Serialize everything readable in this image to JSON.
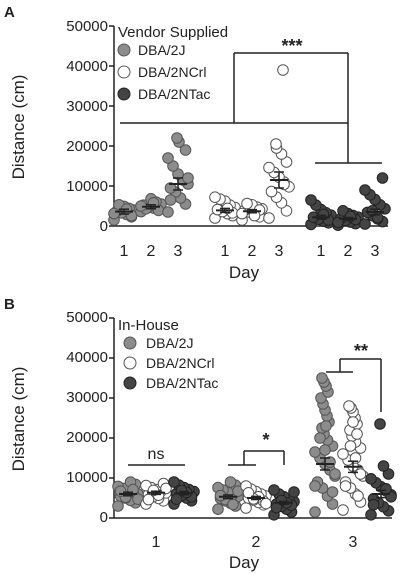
{
  "chart_data": [
    {
      "type": "scatter",
      "panel_label": "A",
      "legend_title": "Vendor Supplied",
      "ylabel": "Distance (cm)",
      "xlabel": "Day",
      "ylim": [
        0,
        50000
      ],
      "yticks": [
        "0",
        "10000",
        "20000",
        "30000",
        "40000",
        "50000"
      ],
      "legend_position": "top-left",
      "series": [
        {
          "name": "DBA/2J",
          "color": "#8c8c8c",
          "stroke": "#555555",
          "days": [
            {
              "day": "1",
              "mean": 3600,
              "sem": 600,
              "values": [
                1500,
                2300,
                2900,
                3300,
                3600,
                4000,
                4400,
                4900,
                5300,
                3100,
                2600,
                4200
              ]
            },
            {
              "day": "2",
              "mean": 4800,
              "sem": 500,
              "values": [
                3600,
                4100,
                4500,
                4800,
                5200,
                5500,
                6000,
                6800,
                4300,
                5000,
                3900,
                5800
              ]
            },
            {
              "day": "3",
              "mean": 10500,
              "sem": 1500,
              "values": [
                3500,
                5500,
                7000,
                8500,
                9500,
                10500,
                11500,
                13000,
                15000,
                17000,
                19000,
                21000,
                22000,
                6500,
                12000
              ]
            }
          ]
        },
        {
          "name": "DBA/2NCrl",
          "color": "#ffffff",
          "stroke": "#555555",
          "days": [
            {
              "day": "1",
              "mean": 3900,
              "sem": 500,
              "values": [
                2000,
                2600,
                3100,
                3600,
                4100,
                4600,
                5200,
                6200,
                6700,
                7200,
                3300,
                4400
              ]
            },
            {
              "day": "2",
              "mean": 3700,
              "sem": 400,
              "values": [
                1500,
                2300,
                2900,
                3500,
                3900,
                4300,
                4700,
                5300,
                5600,
                3100,
                4000,
                2600
              ]
            },
            {
              "day": "3",
              "mean": 11500,
              "sem": 2000,
              "values": [
                2000,
                3800,
                5800,
                7200,
                8600,
                9800,
                11000,
                12200,
                13400,
                14600,
                16000,
                18000,
                19500,
                20500,
                39000,
                10400
              ]
            }
          ]
        },
        {
          "name": "DBA/2NTac",
          "color": "#444444",
          "stroke": "#222222",
          "days": [
            {
              "day": "1",
              "mean": 2200,
              "sem": 450,
              "values": [
                400,
                800,
                1200,
                1700,
                2200,
                2700,
                3300,
                4100,
                5200,
                6500,
                1500,
                2900
              ]
            },
            {
              "day": "2",
              "mean": 1800,
              "sem": 300,
              "values": [
                200,
                600,
                1000,
                1400,
                1800,
                2200,
                2600,
                3100,
                3800,
                900,
                1600,
                2400
              ]
            },
            {
              "day": "3",
              "mean": 3500,
              "sem": 700,
              "values": [
                500,
                1100,
                1800,
                2600,
                3400,
                4300,
                5300,
                6600,
                7800,
                9000,
                12000,
                2100,
                3800
              ]
            }
          ]
        }
      ],
      "significance": [
        {
          "label": "***"
        }
      ]
    },
    {
      "type": "scatter",
      "panel_label": "B",
      "legend_title": "In-House",
      "ylabel": "Distance (cm)",
      "xlabel": "Day",
      "ylim": [
        0,
        50000
      ],
      "yticks": [
        "0",
        "10000",
        "20000",
        "30000",
        "40000",
        "50000"
      ],
      "categories": [
        "1",
        "2",
        "3"
      ],
      "legend_position": "top-left",
      "series": [
        {
          "name": "DBA/2J",
          "color": "#8c8c8c",
          "stroke": "#555555",
          "values": [
            {
              "mean": 6000,
              "sem": 450,
              "values": [
                3000,
                3800,
                4400,
                5000,
                5500,
                6000,
                6400,
                6900,
                7400,
                7900,
                8400,
                9000,
                5200,
                6700,
                4700,
                7100
              ]
            },
            {
              "mean": 5300,
              "sem": 450,
              "values": [
                2200,
                3000,
                3700,
                4300,
                4900,
                5400,
                5900,
                6400,
                7000,
                7600,
                8200,
                9000,
                4600,
                5600,
                6700,
                3400
              ]
            },
            {
              "mean": 13500,
              "sem": 1500,
              "values": [
                1500,
                3500,
                5500,
                7500,
                9000,
                10500,
                12000,
                13500,
                15000,
                16500,
                18000,
                19500,
                21000,
                22500,
                24000,
                25500,
                27000,
                28500,
                30000,
                31500,
                33000,
                34000,
                35000,
                11000,
                14000,
                17000,
                20000,
                8000,
                6500,
                23000
              ]
            }
          ]
        },
        {
          "name": "DBA/2NCrl",
          "color": "#ffffff",
          "stroke": "#555555",
          "values": [
            {
              "mean": 6300,
              "sem": 400,
              "values": [
                3500,
                4300,
                4900,
                5400,
                5900,
                6300,
                6700,
                7100,
                7600,
                8100,
                8600,
                5700,
                6900,
                4600,
                7400
              ]
            },
            {
              "mean": 5000,
              "sem": 400,
              "values": [
                2500,
                3300,
                3900,
                4500,
                5000,
                5500,
                6000,
                6600,
                7200,
                8000,
                4200,
                5300,
                4800,
                6300,
                3600
              ]
            },
            {
              "mean": 12800,
              "sem": 1400,
              "values": [
                2000,
                4000,
                6000,
                7500,
                9000,
                10500,
                12000,
                13000,
                14500,
                16000,
                17500,
                19000,
                20500,
                22000,
                23500,
                25000,
                26500,
                27500,
                28000,
                11000,
                15000,
                18000,
                8000,
                21000,
                5500,
                24000
              ]
            }
          ]
        },
        {
          "name": "DBA/2NTac",
          "color": "#444444",
          "stroke": "#222222",
          "values": [
            {
              "mean": 6200,
              "sem": 400,
              "values": [
                3500,
                4300,
                5000,
                5600,
                6100,
                6600,
                7100,
                7600,
                8200,
                9000,
                5300,
                6400,
                6900,
                4700
              ]
            },
            {
              "mean": 3800,
              "sem": 350,
              "values": [
                800,
                1500,
                2200,
                2900,
                3500,
                4100,
                4700,
                5300,
                6000,
                7000,
                3200,
                3800,
                4400,
                2600,
                6500
              ]
            },
            {
              "mean": 6000,
              "sem": 900,
              "values": [
                800,
                1800,
                2800,
                3800,
                4800,
                5800,
                6800,
                7800,
                8800,
                9800,
                11000,
                13000,
                23500,
                3300,
                5300,
                7300
              ]
            }
          ]
        }
      ],
      "significance": [
        {
          "label": "ns"
        },
        {
          "label": "*"
        },
        {
          "label": "**"
        }
      ]
    }
  ]
}
